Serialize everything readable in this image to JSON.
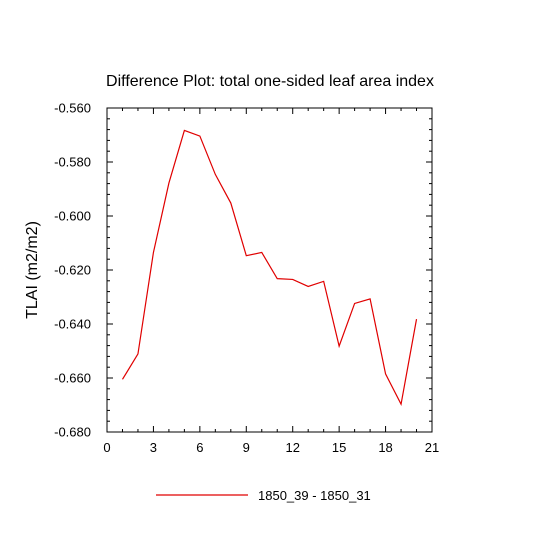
{
  "chart_data": {
    "type": "line",
    "title": "Difference Plot: total one-sided leaf area index",
    "xlabel": "",
    "ylabel": "TLAI  (m2/m2)",
    "xlim": [
      0,
      21
    ],
    "ylim": [
      -0.68,
      -0.56
    ],
    "x_ticks": [
      0,
      3,
      6,
      9,
      12,
      15,
      18,
      21
    ],
    "x_tick_labels": [
      "0",
      "3",
      "6",
      "9",
      "12",
      "15",
      "18",
      "21"
    ],
    "y_ticks": [
      -0.56,
      -0.58,
      -0.6,
      -0.62,
      -0.64,
      -0.66,
      -0.68
    ],
    "y_tick_labels": [
      "-0.560",
      "-0.580",
      "-0.600",
      "-0.620",
      "-0.640",
      "-0.660",
      "-0.680"
    ],
    "grid": false,
    "legend_position": "bottom-center",
    "series": [
      {
        "name": "1850_39 - 1850_31",
        "color": "#e00000",
        "x": [
          1,
          2,
          3,
          4,
          5,
          6,
          7,
          8,
          9,
          10,
          11,
          12,
          13,
          14,
          15,
          16,
          17,
          18,
          19,
          20
        ],
        "y": [
          -0.6605,
          -0.6511,
          -0.6135,
          -0.5878,
          -0.5683,
          -0.5704,
          -0.5846,
          -0.5952,
          -0.6147,
          -0.6135,
          -0.6232,
          -0.6235,
          -0.6261,
          -0.6242,
          -0.6482,
          -0.6324,
          -0.6307,
          -0.6585,
          -0.6697,
          -0.6382
        ]
      }
    ]
  }
}
